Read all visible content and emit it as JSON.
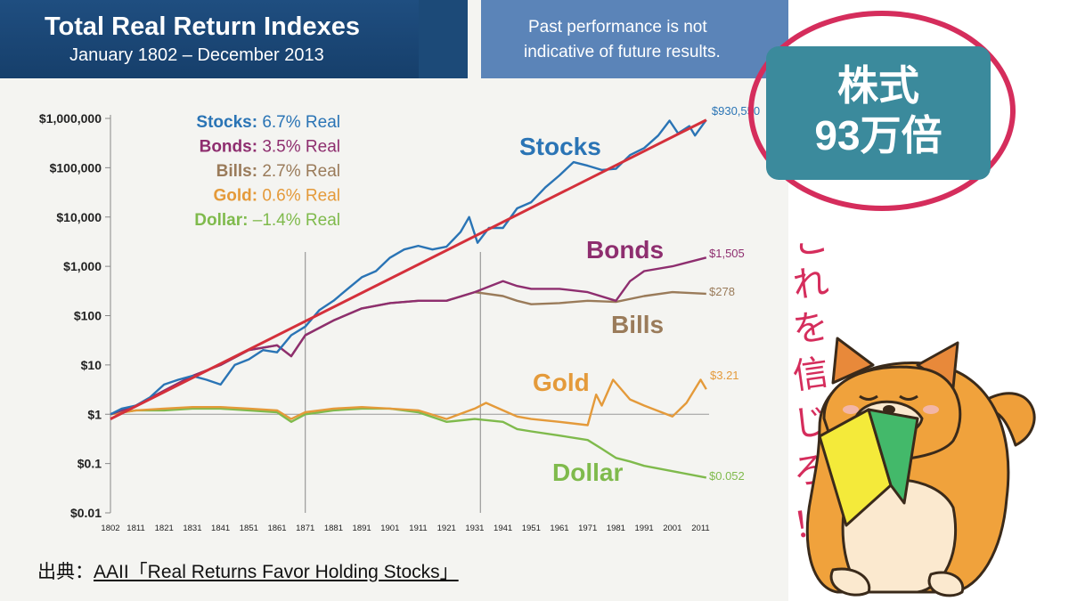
{
  "header": {
    "title": "Total Real Return Indexes",
    "subtitle": "January 1802 – December 2013",
    "disclaimer_line1": "Past performance is not",
    "disclaimer_line2": "indicative of future results."
  },
  "badge": {
    "text": "株式\n93万倍"
  },
  "vertical_text": [
    "こ",
    "れ",
    "を",
    "信",
    "じ",
    "ろ",
    "！"
  ],
  "source": {
    "prefix": "出典：",
    "link": "AAII「Real Returns Favor Holding Stocks」"
  },
  "colors": {
    "stocks": "#2a74b5",
    "bonds": "#8e2e6f",
    "bills": "#9a7b5a",
    "gold": "#e49a3a",
    "dollar": "#7fba4c",
    "trend": "#d4303b",
    "ring": "#d52d5c",
    "badge": "#3b8a9c"
  },
  "chart_data": {
    "type": "line",
    "title": "Total Real Return Indexes",
    "subtitle": "January 1802 – December 2013",
    "scale": "log",
    "ylim": [
      0.01,
      1000000
    ],
    "y_ticks": [
      {
        "v": 1000000,
        "label": "$1,000,000"
      },
      {
        "v": 100000,
        "label": "$100,000"
      },
      {
        "v": 10000,
        "label": "$10,000"
      },
      {
        "v": 1000,
        "label": "$1,000"
      },
      {
        "v": 100,
        "label": "$100"
      },
      {
        "v": 10,
        "label": "$10"
      },
      {
        "v": 1,
        "label": "$1"
      },
      {
        "v": 0.1,
        "label": "$0.1"
      },
      {
        "v": 0.01,
        "label": "$0.01"
      }
    ],
    "xlim": [
      1802,
      2014
    ],
    "x_ticks": [
      1802,
      1811,
      1821,
      1831,
      1841,
      1851,
      1861,
      1871,
      1881,
      1891,
      1901,
      1911,
      1921,
      1931,
      1941,
      1951,
      1961,
      1971,
      1981,
      1991,
      2001,
      2011
    ],
    "vlines": [
      1871,
      1933
    ],
    "legend": [
      "Stocks: 6.7% Real",
      "Bonds: 3.5% Real",
      "Bills: 2.7% Real",
      "Gold: 0.6% Real",
      "Dollar: –1.4% Real"
    ],
    "series": [
      {
        "name": "Stocks",
        "end_label": "$930,550",
        "x": [
          1802,
          1806,
          1811,
          1816,
          1821,
          1826,
          1831,
          1836,
          1841,
          1846,
          1851,
          1856,
          1861,
          1866,
          1871,
          1876,
          1881,
          1886,
          1891,
          1896,
          1901,
          1906,
          1911,
          1916,
          1921,
          1926,
          1929,
          1932,
          1936,
          1941,
          1946,
          1951,
          1956,
          1961,
          1966,
          1971,
          1976,
          1981,
          1986,
          1991,
          1996,
          2000,
          2003,
          2007,
          2009,
          2013
        ],
        "y": [
          1,
          1.3,
          1.5,
          2.2,
          4,
          5,
          6,
          5,
          4,
          10,
          13,
          20,
          18,
          40,
          60,
          130,
          200,
          350,
          600,
          800,
          1500,
          2200,
          2600,
          2200,
          2500,
          5000,
          10000,
          3000,
          6000,
          6000,
          15000,
          20000,
          40000,
          70000,
          130000,
          110000,
          90000,
          95000,
          180000,
          250000,
          450000,
          900000,
          500000,
          700000,
          450000,
          930550
        ]
      },
      {
        "name": "Bonds",
        "end_label": "$1,505",
        "x": [
          1802,
          1811,
          1821,
          1831,
          1841,
          1851,
          1861,
          1866,
          1871,
          1881,
          1891,
          1901,
          1911,
          1921,
          1931,
          1941,
          1946,
          1951,
          1961,
          1971,
          1981,
          1986,
          1991,
          2001,
          2013
        ],
        "y": [
          1,
          1.5,
          3,
          6,
          10,
          20,
          25,
          15,
          40,
          80,
          140,
          180,
          200,
          200,
          300,
          500,
          400,
          350,
          350,
          300,
          200,
          500,
          800,
          1000,
          1505
        ]
      },
      {
        "name": "Bills",
        "end_label": "$278",
        "x": [
          1802,
          1811,
          1821,
          1831,
          1841,
          1851,
          1861,
          1866,
          1871,
          1881,
          1891,
          1901,
          1911,
          1921,
          1931,
          1941,
          1946,
          1951,
          1961,
          1971,
          1981,
          1991,
          2001,
          2013
        ],
        "y": [
          1,
          1.5,
          3,
          6,
          10,
          20,
          25,
          15,
          40,
          80,
          140,
          180,
          200,
          200,
          300,
          250,
          200,
          170,
          180,
          200,
          190,
          250,
          300,
          278
        ]
      },
      {
        "name": "Gold",
        "end_label": "$3.21",
        "x": [
          1802,
          1811,
          1821,
          1831,
          1841,
          1851,
          1861,
          1866,
          1871,
          1881,
          1891,
          1901,
          1911,
          1921,
          1931,
          1935,
          1941,
          1946,
          1951,
          1961,
          1971,
          1974,
          1976,
          1980,
          1986,
          1991,
          2001,
          2006,
          2011,
          2013
        ],
        "y": [
          1,
          1.2,
          1.3,
          1.4,
          1.4,
          1.3,
          1.2,
          0.8,
          1.1,
          1.3,
          1.4,
          1.3,
          1.2,
          0.8,
          1.3,
          1.7,
          1.2,
          0.9,
          0.8,
          0.7,
          0.6,
          2.5,
          1.5,
          5,
          2,
          1.5,
          0.9,
          1.7,
          5,
          3.21
        ]
      },
      {
        "name": "Dollar",
        "end_label": "$0.052",
        "x": [
          1802,
          1811,
          1821,
          1831,
          1841,
          1851,
          1861,
          1866,
          1871,
          1881,
          1891,
          1901,
          1911,
          1921,
          1931,
          1941,
          1946,
          1951,
          1961,
          1971,
          1976,
          1981,
          1986,
          1991,
          2001,
          2013
        ],
        "y": [
          1,
          1.2,
          1.2,
          1.3,
          1.3,
          1.2,
          1.1,
          0.7,
          1,
          1.2,
          1.3,
          1.3,
          1.1,
          0.7,
          0.8,
          0.7,
          0.5,
          0.45,
          0.37,
          0.3,
          0.2,
          0.13,
          0.11,
          0.09,
          0.07,
          0.052
        ]
      }
    ],
    "trend": {
      "x": [
        1802,
        2013
      ],
      "y": [
        0.8,
        930550
      ]
    },
    "curve_labels": [
      "Stocks",
      "Bonds",
      "Bills",
      "Gold",
      "Dollar"
    ]
  }
}
